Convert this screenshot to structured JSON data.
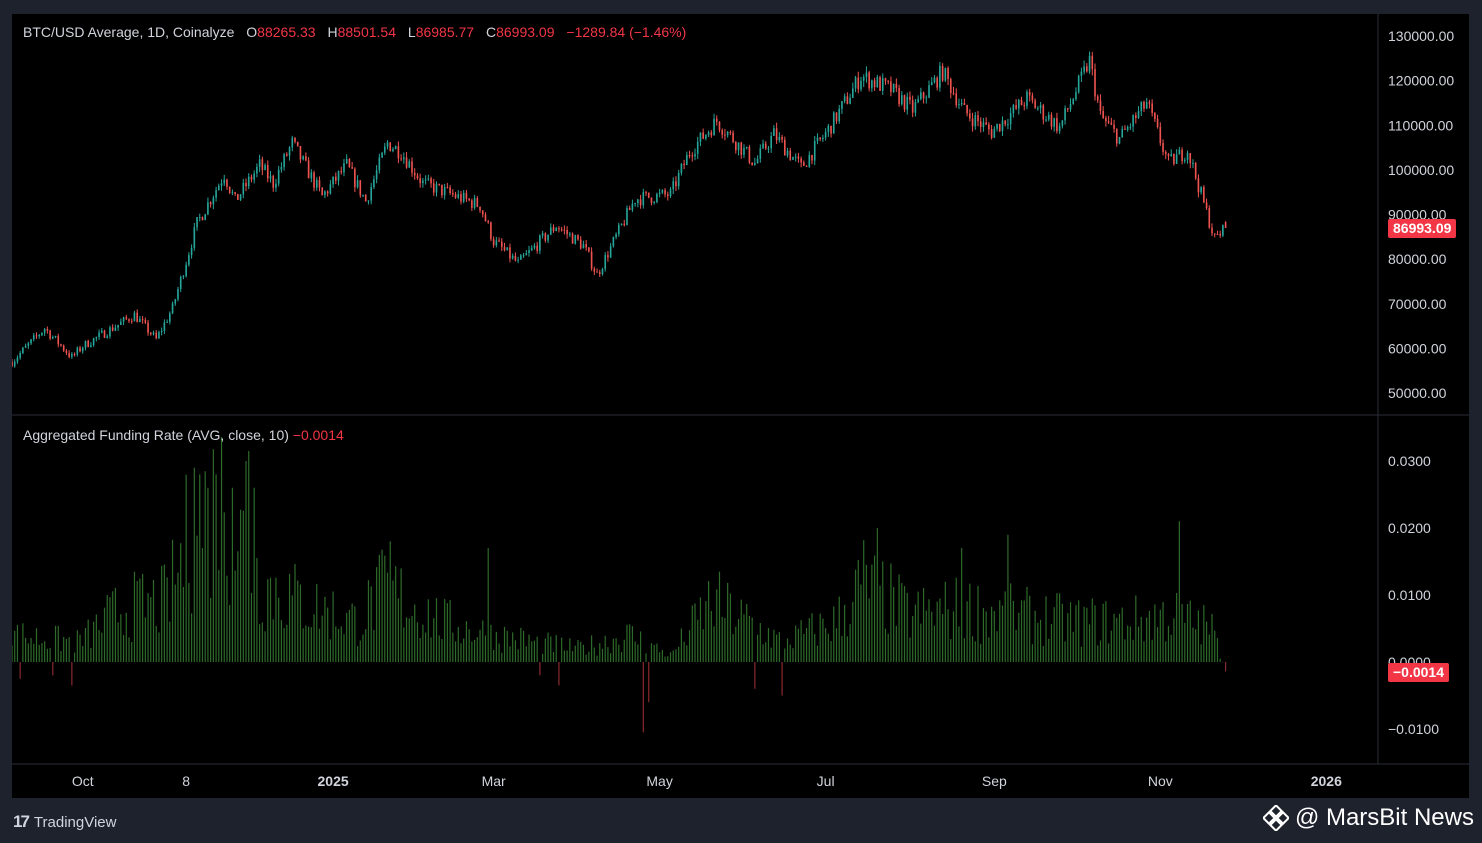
{
  "price_legend": {
    "symbol": "BTC/USD Average, 1D, Coinalyze",
    "o_label": "O",
    "o_value": "88265.33",
    "h_label": "H",
    "h_value": "88501.54",
    "l_label": "L",
    "l_value": "86985.77",
    "c_label": "C",
    "c_value": "86993.09",
    "change": "−1289.84 (−1.46%)"
  },
  "price_axis": {
    "ticks": [
      "130000.00",
      "120000.00",
      "110000.00",
      "100000.00",
      "90000.00",
      "80000.00",
      "70000.00",
      "60000.00",
      "50000.00"
    ],
    "current_tag": "86993.09"
  },
  "funding_legend": {
    "title": "Aggregated Funding Rate (AVG, close, 10)",
    "value": "−0.0014"
  },
  "funding_axis": {
    "ticks": [
      "0.0300",
      "0.0200",
      "0.0100",
      "0.0000",
      "−0.0100"
    ],
    "current_tag": "−0.0014"
  },
  "time_axis": {
    "labels": [
      "Oct",
      "8",
      "2025",
      "Mar",
      "May",
      "Jul",
      "Sep",
      "Nov",
      "2026"
    ],
    "bold": [
      "2025",
      "2026"
    ]
  },
  "footer": {
    "brand": "TradingView",
    "brand_icon": "tradingview-logo-icon",
    "watermark": "@ MarsBit News",
    "watermark_icon": "binance-diamond-icon"
  },
  "colors": {
    "background": "#000000",
    "frame": "#1e222d",
    "up": "#26a69a",
    "down": "#ef5350",
    "funding_pos": "#2e6b2a",
    "funding_neg": "#8b2a2e",
    "accent_red": "#f23645"
  },
  "chart_data": [
    {
      "type": "candlestick",
      "title": "BTC/USD Average, 1D, Coinalyze",
      "ylim": [
        45000,
        133000
      ],
      "x_range": [
        "2024-09-05",
        "2026-01-20"
      ],
      "price_anchors": [
        [
          "2024-09-05",
          57000
        ],
        [
          "2024-09-17",
          64500
        ],
        [
          "2024-09-27",
          58000
        ],
        [
          "2024-10-01",
          60500
        ],
        [
          "2024-10-20",
          67500
        ],
        [
          "2024-10-28",
          62000
        ],
        [
          "2024-11-03",
          69000
        ],
        [
          "2024-11-12",
          88000
        ],
        [
          "2024-11-22",
          99000
        ],
        [
          "2024-11-26",
          93000
        ],
        [
          "2024-12-05",
          101000
        ],
        [
          "2024-12-10",
          97000
        ],
        [
          "2024-12-17",
          106000
        ],
        [
          "2024-12-28",
          94000
        ],
        [
          "2025-01-06",
          101000
        ],
        [
          "2025-01-13",
          93000
        ],
        [
          "2025-01-21",
          106000
        ],
        [
          "2025-01-26",
          104000
        ],
        [
          "2025-02-03",
          97000
        ],
        [
          "2025-02-24",
          92000
        ],
        [
          "2025-03-01",
          84000
        ],
        [
          "2025-03-10",
          79000
        ],
        [
          "2025-03-24",
          87500
        ],
        [
          "2025-04-03",
          83000
        ],
        [
          "2025-04-08",
          76500
        ],
        [
          "2025-04-22",
          93500
        ],
        [
          "2025-05-05",
          94500
        ],
        [
          "2025-05-12",
          104000
        ],
        [
          "2025-05-22",
          111000
        ],
        [
          "2025-06-05",
          101500
        ],
        [
          "2025-06-12",
          108000
        ],
        [
          "2025-06-22",
          100500
        ],
        [
          "2025-07-02",
          109000
        ],
        [
          "2025-07-14",
          121000
        ],
        [
          "2025-07-25",
          118000
        ],
        [
          "2025-08-02",
          113500
        ],
        [
          "2025-08-13",
          122000
        ],
        [
          "2025-08-21",
          113000
        ],
        [
          "2025-08-31",
          108500
        ],
        [
          "2025-09-13",
          116000
        ],
        [
          "2025-09-25",
          109500
        ],
        [
          "2025-10-06",
          124500
        ],
        [
          "2025-10-10",
          112000
        ],
        [
          "2025-10-17",
          107000
        ],
        [
          "2025-10-27",
          115000
        ],
        [
          "2025-11-04",
          101500
        ],
        [
          "2025-11-11",
          104500
        ],
        [
          "2025-11-21",
          84500
        ],
        [
          "2025-11-25",
          87000
        ]
      ],
      "last": {
        "open": 88265.33,
        "high": 88501.54,
        "low": 86985.77,
        "close": 86993.09
      }
    },
    {
      "type": "bar",
      "title": "Aggregated Funding Rate (AVG, close, 10)",
      "ylim": [
        -0.015,
        0.033
      ],
      "x_range": [
        "2024-09-05",
        "2026-01-20"
      ],
      "funding_anchors": [
        [
          "2024-09-05",
          0.004
        ],
        [
          "2024-09-30",
          0.003
        ],
        [
          "2024-10-15",
          0.008
        ],
        [
          "2024-11-01",
          0.009
        ],
        [
          "2024-11-12",
          0.022
        ],
        [
          "2024-11-22",
          0.024
        ],
        [
          "2024-12-05",
          0.012
        ],
        [
          "2024-12-20",
          0.009
        ],
        [
          "2025-01-10",
          0.006
        ],
        [
          "2025-01-20",
          0.011
        ],
        [
          "2025-02-10",
          0.006
        ],
        [
          "2025-03-01",
          0.004
        ],
        [
          "2025-04-01",
          0.002
        ],
        [
          "2025-04-20",
          0.004
        ],
        [
          "2025-05-05",
          0.001
        ],
        [
          "2025-05-20",
          0.009
        ],
        [
          "2025-06-15",
          0.003
        ],
        [
          "2025-07-05",
          0.006
        ],
        [
          "2025-07-15",
          0.012
        ],
        [
          "2025-08-01",
          0.007
        ],
        [
          "2025-08-20",
          0.008
        ],
        [
          "2025-09-10",
          0.007
        ],
        [
          "2025-10-01",
          0.006
        ],
        [
          "2025-10-20",
          0.006
        ],
        [
          "2025-11-05",
          0.007
        ],
        [
          "2025-11-20",
          0.005
        ],
        [
          "2025-11-25",
          -0.0014
        ]
      ],
      "spikes": [
        [
          "2024-09-08",
          -0.0025
        ],
        [
          "2024-09-20",
          -0.002
        ],
        [
          "2024-09-27",
          -0.0035
        ],
        [
          "2024-11-11",
          0.029
        ],
        [
          "2024-11-13",
          0.028
        ],
        [
          "2024-11-16",
          0.026
        ],
        [
          "2024-11-19",
          0.028
        ],
        [
          "2024-11-25",
          0.026
        ],
        [
          "2024-11-30",
          0.03
        ],
        [
          "2024-12-01",
          0.0315
        ],
        [
          "2024-12-03",
          0.026
        ],
        [
          "2025-01-22",
          0.018
        ],
        [
          "2025-02-27",
          0.017
        ],
        [
          "2025-03-18",
          -0.002
        ],
        [
          "2025-03-25",
          -0.0035
        ],
        [
          "2025-04-25",
          -0.0105
        ],
        [
          "2025-04-27",
          -0.006
        ],
        [
          "2025-06-05",
          -0.004
        ],
        [
          "2025-06-15",
          -0.005
        ],
        [
          "2025-07-20",
          0.02
        ],
        [
          "2025-08-20",
          0.017
        ],
        [
          "2025-09-06",
          0.019
        ],
        [
          "2025-11-08",
          0.021
        ],
        [
          "2025-11-26",
          -0.003
        ]
      ],
      "last": -0.0014
    }
  ]
}
